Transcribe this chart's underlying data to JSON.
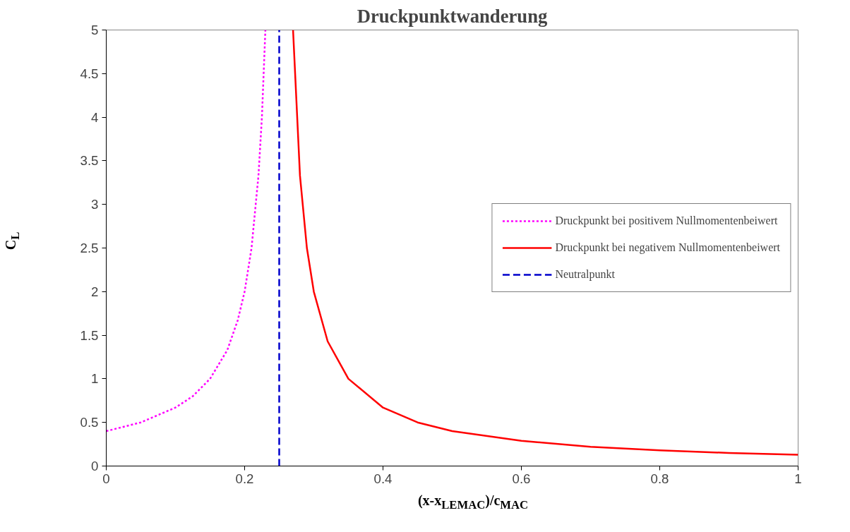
{
  "chart_data": {
    "type": "line",
    "title": "Druckpunktwanderung",
    "xlabel": "(x-x$_{LEMAC}$)/c$_{MAC}$",
    "ylabel": "C$_{L}$",
    "xlim": [
      0,
      1
    ],
    "xticks": [
      0,
      0.2,
      0.4,
      0.6,
      0.8,
      1
    ],
    "ylim": [
      0,
      5
    ],
    "yticks": [
      0,
      0.5,
      1,
      1.5,
      2,
      2.5,
      3,
      3.5,
      4,
      4.5,
      5
    ],
    "grid": false,
    "legend": "right",
    "marker": "none",
    "series": [
      {
        "name": "Druckpunkt bei positivem Nullmomentenbeiwert",
        "color": "#ff00ff",
        "line_style": "dotted",
        "x": [
          0,
          0.05,
          0.1,
          0.125,
          0.15,
          0.175,
          0.19,
          0.2,
          0.21,
          0.22,
          0.225,
          0.23
        ],
        "values": [
          0.4,
          0.5,
          0.67,
          0.8,
          1.0,
          1.33,
          1.67,
          2.0,
          2.5,
          3.33,
          4.0,
          5.0
        ]
      },
      {
        "name": "Druckpunkt bei negativem Nullmomentenbeiwert",
        "color": "#ff0000",
        "line_style": "solid",
        "x": [
          0.27,
          0.28,
          0.29,
          0.3,
          0.32,
          0.35,
          0.4,
          0.45,
          0.5,
          0.6,
          0.7,
          0.8,
          0.9,
          1.0
        ],
        "values": [
          5.0,
          3.33,
          2.5,
          2.0,
          1.43,
          1.0,
          0.67,
          0.5,
          0.4,
          0.29,
          0.22,
          0.18,
          0.15,
          0.13
        ]
      },
      {
        "name": "Neutralpunkt",
        "color": "#0000cc",
        "line_style": "dashed",
        "x": [
          0.25,
          0.25
        ],
        "values": [
          0,
          5
        ]
      }
    ]
  }
}
